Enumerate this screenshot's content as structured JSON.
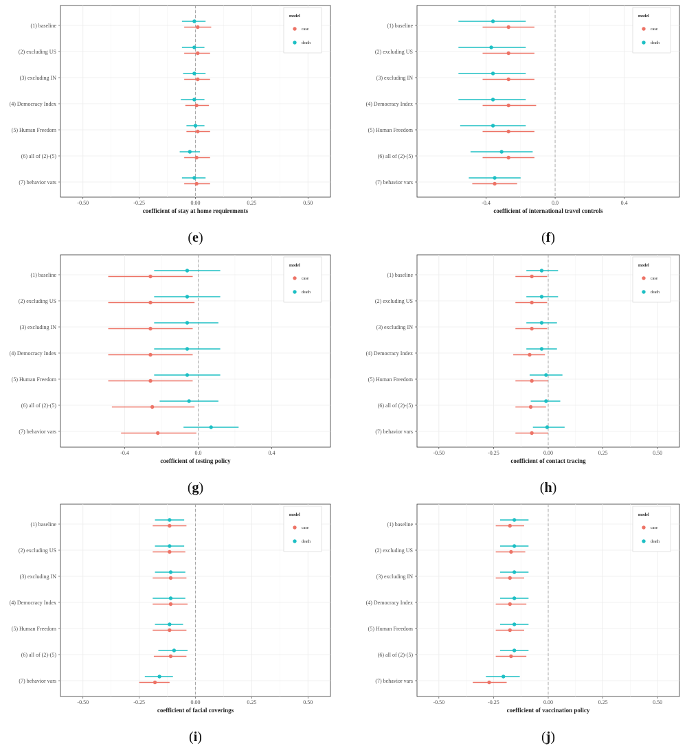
{
  "colors": {
    "case": "#ED7366",
    "death": "#1DBFC4",
    "grid": "#ebebeb",
    "frame": "#333333",
    "zero": "#a0a0a0"
  },
  "rows": [
    "(1) baseline",
    "(2) excluding US",
    "(3) excluding IN",
    "(4) Democracy Index",
    "(5) Human Freedom",
    "(6) all of (2)-(5)",
    "(7) behavior vars"
  ],
  "legend": {
    "title": "model",
    "case": "case",
    "death": "death"
  },
  "chart_data": [
    {
      "type": "scatter",
      "panel": "e",
      "xlabel": "coefficient of stay at home requirements",
      "xlim": [
        -0.6,
        0.6
      ],
      "ticks": [
        -0.5,
        -0.25,
        0,
        0.25,
        0.5
      ],
      "tick_labels": [
        "-0.50",
        "-0.25",
        "0.00",
        "0.25",
        "0.50"
      ],
      "series": [
        {
          "name": "case",
          "est": [
            0.01,
            0.01,
            0.01,
            0.005,
            0.01,
            0.005,
            0.005
          ],
          "lo": [
            -0.05,
            -0.05,
            -0.05,
            -0.045,
            -0.04,
            -0.05,
            -0.05
          ],
          "hi": [
            0.07,
            0.065,
            0.065,
            0.06,
            0.065,
            0.065,
            0.065
          ]
        },
        {
          "name": "death",
          "est": [
            -0.005,
            -0.005,
            -0.005,
            -0.005,
            0.0,
            -0.025,
            -0.005
          ],
          "lo": [
            -0.06,
            -0.06,
            -0.055,
            -0.065,
            -0.04,
            -0.07,
            -0.06
          ],
          "hi": [
            0.045,
            0.04,
            0.045,
            0.04,
            0.04,
            0.02,
            0.045
          ]
        }
      ]
    },
    {
      "type": "scatter",
      "panel": "f",
      "xlabel": "coefficient of international travel controls",
      "xlim": [
        -0.8,
        0.72
      ],
      "ticks": [
        -0.4,
        0,
        0.4
      ],
      "tick_labels": [
        "-0.4",
        "0.0",
        "0.4"
      ],
      "series": [
        {
          "name": "case",
          "est": [
            -0.27,
            -0.27,
            -0.27,
            -0.27,
            -0.27,
            -0.27,
            -0.35
          ],
          "lo": [
            -0.42,
            -0.42,
            -0.42,
            -0.42,
            -0.42,
            -0.42,
            -0.48
          ],
          "hi": [
            -0.12,
            -0.12,
            -0.12,
            -0.11,
            -0.12,
            -0.12,
            -0.22
          ]
        },
        {
          "name": "death",
          "est": [
            -0.36,
            -0.37,
            -0.36,
            -0.36,
            -0.36,
            -0.31,
            -0.35
          ],
          "lo": [
            -0.56,
            -0.56,
            -0.56,
            -0.56,
            -0.55,
            -0.49,
            -0.5
          ],
          "hi": [
            -0.17,
            -0.17,
            -0.17,
            -0.17,
            -0.17,
            -0.13,
            -0.2
          ]
        }
      ]
    },
    {
      "type": "scatter",
      "panel": "g",
      "xlabel": "coefficient of testing policy",
      "xlim": [
        -0.75,
        0.72
      ],
      "ticks": [
        -0.4,
        0,
        0.4
      ],
      "tick_labels": [
        "-0.4",
        "0.0",
        "0.4"
      ],
      "series": [
        {
          "name": "case",
          "est": [
            -0.26,
            -0.26,
            -0.26,
            -0.26,
            -0.26,
            -0.25,
            -0.22
          ],
          "lo": [
            -0.49,
            -0.49,
            -0.49,
            -0.49,
            -0.49,
            -0.47,
            -0.42
          ],
          "hi": [
            -0.03,
            -0.02,
            -0.03,
            -0.03,
            -0.03,
            -0.02,
            -0.01
          ]
        },
        {
          "name": "death",
          "est": [
            -0.06,
            -0.06,
            -0.06,
            -0.06,
            -0.06,
            -0.05,
            0.07
          ],
          "lo": [
            -0.24,
            -0.24,
            -0.24,
            -0.24,
            -0.24,
            -0.21,
            -0.08
          ],
          "hi": [
            0.12,
            0.12,
            0.11,
            0.12,
            0.12,
            0.11,
            0.22
          ]
        }
      ]
    },
    {
      "type": "scatter",
      "panel": "h",
      "xlabel": "coefficient of contact tracing",
      "xlim": [
        -0.6,
        0.6
      ],
      "ticks": [
        -0.5,
        -0.25,
        0,
        0.25,
        0.5
      ],
      "tick_labels": [
        "-0.50",
        "-0.25",
        "0.00",
        "0.25",
        "0.50"
      ],
      "series": [
        {
          "name": "case",
          "est": [
            -0.075,
            -0.075,
            -0.075,
            -0.085,
            -0.075,
            -0.08,
            -0.075
          ],
          "lo": [
            -0.15,
            -0.15,
            -0.15,
            -0.16,
            -0.15,
            -0.15,
            -0.15
          ],
          "hi": [
            -0.005,
            -0.005,
            -0.005,
            -0.015,
            0.0,
            -0.01,
            0.0
          ]
        },
        {
          "name": "death",
          "est": [
            -0.03,
            -0.03,
            -0.03,
            -0.03,
            -0.01,
            -0.01,
            -0.005
          ],
          "lo": [
            -0.1,
            -0.1,
            -0.1,
            -0.1,
            -0.085,
            -0.08,
            -0.07
          ],
          "hi": [
            0.045,
            0.045,
            0.04,
            0.04,
            0.065,
            0.055,
            0.075
          ]
        }
      ]
    },
    {
      "type": "scatter",
      "panel": "i",
      "xlabel": "coefficient of facial coverings",
      "xlim": [
        -0.6,
        0.6
      ],
      "ticks": [
        -0.5,
        -0.25,
        0,
        0.25,
        0.5
      ],
      "tick_labels": [
        "-0.50",
        "-0.25",
        "0.00",
        "0.25",
        "0.50"
      ],
      "series": [
        {
          "name": "case",
          "est": [
            -0.115,
            -0.115,
            -0.11,
            -0.11,
            -0.115,
            -0.11,
            -0.18
          ],
          "lo": [
            -0.19,
            -0.19,
            -0.19,
            -0.19,
            -0.19,
            -0.185,
            -0.25
          ],
          "hi": [
            -0.04,
            -0.045,
            -0.04,
            -0.035,
            -0.04,
            -0.04,
            -0.115
          ]
        },
        {
          "name": "death",
          "est": [
            -0.115,
            -0.115,
            -0.11,
            -0.11,
            -0.115,
            -0.095,
            -0.16
          ],
          "lo": [
            -0.18,
            -0.18,
            -0.18,
            -0.19,
            -0.18,
            -0.165,
            -0.225
          ],
          "hi": [
            -0.05,
            -0.05,
            -0.045,
            -0.045,
            -0.055,
            -0.035,
            -0.1
          ]
        }
      ]
    },
    {
      "type": "scatter",
      "panel": "j",
      "xlabel": "coefficient of vaccination policy",
      "xlim": [
        -0.6,
        0.6
      ],
      "ticks": [
        -0.5,
        -0.25,
        0,
        0.25,
        0.5
      ],
      "tick_labels": [
        "-0.50",
        "-0.25",
        "0.00",
        "0.25",
        "0.50"
      ],
      "series": [
        {
          "name": "case",
          "est": [
            -0.175,
            -0.17,
            -0.175,
            -0.175,
            -0.175,
            -0.17,
            -0.27
          ],
          "lo": [
            -0.24,
            -0.24,
            -0.24,
            -0.24,
            -0.24,
            -0.24,
            -0.345
          ],
          "hi": [
            -0.11,
            -0.105,
            -0.11,
            -0.1,
            -0.11,
            -0.1,
            -0.19
          ]
        },
        {
          "name": "death",
          "est": [
            -0.155,
            -0.155,
            -0.155,
            -0.155,
            -0.155,
            -0.155,
            -0.205
          ],
          "lo": [
            -0.22,
            -0.22,
            -0.22,
            -0.22,
            -0.22,
            -0.22,
            -0.285
          ],
          "hi": [
            -0.09,
            -0.09,
            -0.09,
            -0.09,
            -0.09,
            -0.09,
            -0.13
          ]
        }
      ]
    }
  ]
}
